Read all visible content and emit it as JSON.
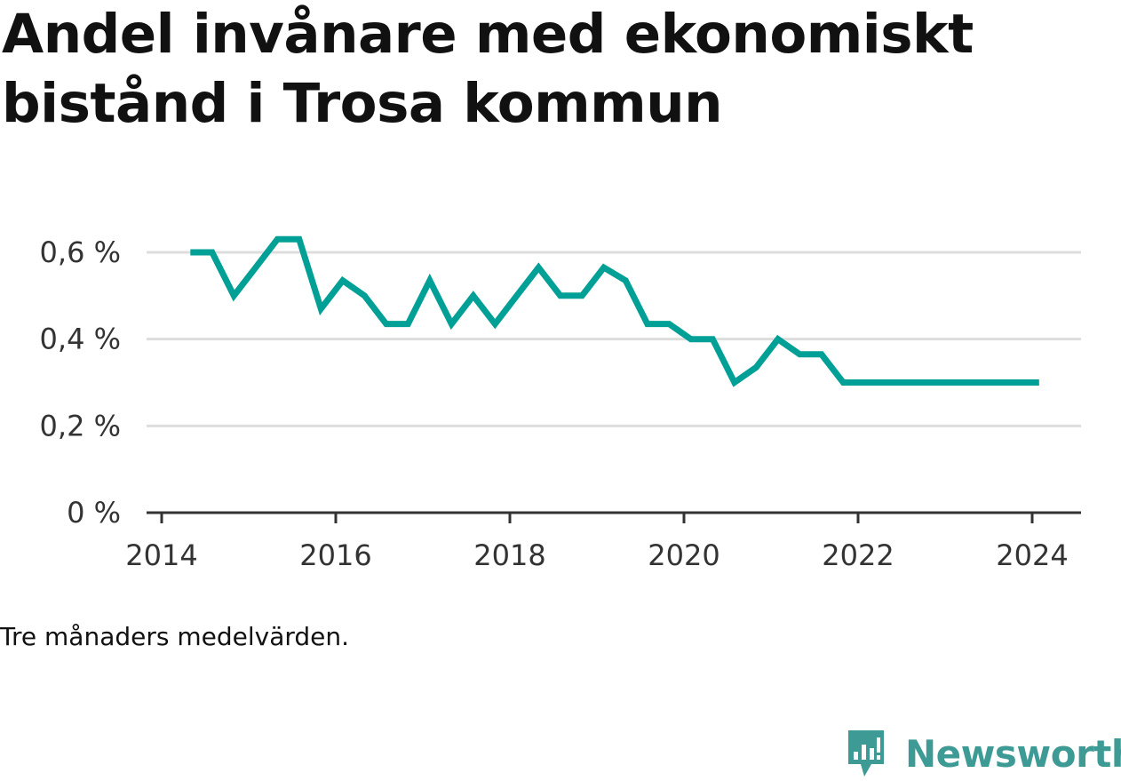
{
  "title": "Andel invånare med ekonomiskt bistånd i Trosa kommun",
  "note": "Tre månaders medelvärden.",
  "brand": {
    "name": "Newsworthy",
    "color": "#3d9a94",
    "icon": "chart-bubble-icon"
  },
  "chart_data": {
    "type": "line",
    "title": "Andel invånare med ekonomiskt bistånd i Trosa kommun",
    "xlabel": "",
    "ylabel": "",
    "xlim": [
      2014.0,
      2024.6
    ],
    "ylim": [
      0,
      0.65
    ],
    "grid": true,
    "legend": "none",
    "line_color": "#00a096",
    "x_ticks": [
      {
        "value": 2014,
        "label": "2014"
      },
      {
        "value": 2016,
        "label": "2016"
      },
      {
        "value": 2018,
        "label": "2018"
      },
      {
        "value": 2020,
        "label": "2020"
      },
      {
        "value": 2022,
        "label": "2022"
      },
      {
        "value": 2024,
        "label": "2024"
      }
    ],
    "y_ticks": [
      {
        "value": 0,
        "label": "0 %"
      },
      {
        "value": 0.2,
        "label": "0,2 %"
      },
      {
        "value": 0.4,
        "label": "0,4 %"
      },
      {
        "value": 0.6,
        "label": "0,6 %"
      }
    ],
    "series": [
      {
        "values": [
          {
            "x": 2014.33,
            "y": 0.6
          },
          {
            "x": 2014.58,
            "y": 0.6
          },
          {
            "x": 2014.83,
            "y": 0.5
          },
          {
            "x": 2015.08,
            "y": 0.565
          },
          {
            "x": 2015.33,
            "y": 0.63
          },
          {
            "x": 2015.58,
            "y": 0.63
          },
          {
            "x": 2015.83,
            "y": 0.47
          },
          {
            "x": 2016.08,
            "y": 0.535
          },
          {
            "x": 2016.33,
            "y": 0.5
          },
          {
            "x": 2016.58,
            "y": 0.435
          },
          {
            "x": 2016.83,
            "y": 0.435
          },
          {
            "x": 2017.08,
            "y": 0.535
          },
          {
            "x": 2017.33,
            "y": 0.435
          },
          {
            "x": 2017.58,
            "y": 0.5
          },
          {
            "x": 2017.83,
            "y": 0.435
          },
          {
            "x": 2018.08,
            "y": 0.5
          },
          {
            "x": 2018.33,
            "y": 0.565
          },
          {
            "x": 2018.58,
            "y": 0.5
          },
          {
            "x": 2018.83,
            "y": 0.5
          },
          {
            "x": 2019.08,
            "y": 0.565
          },
          {
            "x": 2019.33,
            "y": 0.535
          },
          {
            "x": 2019.58,
            "y": 0.435
          },
          {
            "x": 2019.83,
            "y": 0.435
          },
          {
            "x": 2020.08,
            "y": 0.4
          },
          {
            "x": 2020.33,
            "y": 0.4
          },
          {
            "x": 2020.58,
            "y": 0.3
          },
          {
            "x": 2020.83,
            "y": 0.335
          },
          {
            "x": 2021.08,
            "y": 0.4
          },
          {
            "x": 2021.33,
            "y": 0.365
          },
          {
            "x": 2021.58,
            "y": 0.365
          },
          {
            "x": 2021.83,
            "y": 0.3
          },
          {
            "x": 2022.08,
            "y": 0.3
          },
          {
            "x": 2022.33,
            "y": 0.3
          },
          {
            "x": 2022.58,
            "y": 0.3
          },
          {
            "x": 2022.83,
            "y": 0.3
          },
          {
            "x": 2023.08,
            "y": 0.3
          },
          {
            "x": 2023.33,
            "y": 0.3
          },
          {
            "x": 2023.58,
            "y": 0.3
          },
          {
            "x": 2023.83,
            "y": 0.3
          },
          {
            "x": 2024.08,
            "y": 0.3
          }
        ]
      }
    ]
  }
}
